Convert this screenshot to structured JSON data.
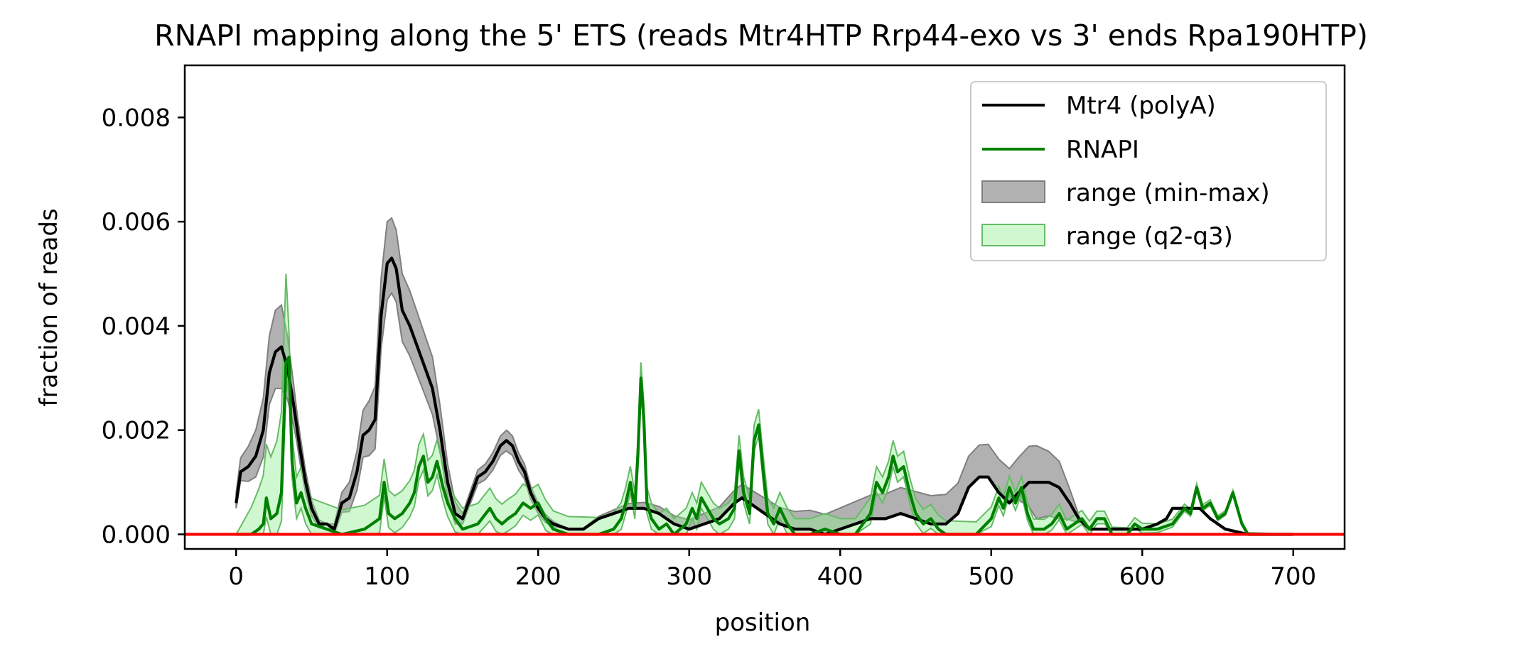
{
  "chart_data": {
    "type": "line",
    "title": "RNAPI mapping along the 5' ETS (reads Mtr4HTP Rrp44-exo vs 3' ends Rpa190HTP)",
    "xlabel": "position",
    "ylabel": "fraction of reads",
    "xlim": [
      -34,
      734
    ],
    "ylim": [
      -0.00028,
      0.009
    ],
    "xticks": [
      0,
      100,
      200,
      300,
      400,
      500,
      600,
      700
    ],
    "xtick_labels": [
      "0",
      "100",
      "200",
      "300",
      "400",
      "500",
      "600",
      "700"
    ],
    "yticks": [
      0,
      0.002,
      0.004,
      0.006,
      0.008
    ],
    "ytick_labels": [
      "0.000",
      "0.002",
      "0.004",
      "0.006",
      "0.008"
    ],
    "grid": false,
    "legend_position": "top-right",
    "baseline": {
      "y": 0,
      "color": "#ff0000"
    },
    "series": [
      {
        "name": "Mtr4 (polyA)",
        "color": "#000000",
        "points": [
          [
            0,
            0.0006
          ],
          [
            3,
            0.0012
          ],
          [
            8,
            0.0013
          ],
          [
            13,
            0.0015
          ],
          [
            18,
            0.002
          ],
          [
            22,
            0.0031
          ],
          [
            26,
            0.0035
          ],
          [
            30,
            0.0036
          ],
          [
            34,
            0.0032
          ],
          [
            38,
            0.0025
          ],
          [
            42,
            0.0017
          ],
          [
            46,
            0.001
          ],
          [
            50,
            0.0005
          ],
          [
            55,
            0.0002
          ],
          [
            60,
            0.0002
          ],
          [
            65,
            0.0001
          ],
          [
            70,
            0.0006
          ],
          [
            75,
            0.0007
          ],
          [
            80,
            0.0012
          ],
          [
            84,
            0.0019
          ],
          [
            88,
            0.002
          ],
          [
            92,
            0.0022
          ],
          [
            96,
            0.0042
          ],
          [
            100,
            0.0052
          ],
          [
            103,
            0.0053
          ],
          [
            106,
            0.0051
          ],
          [
            110,
            0.0043
          ],
          [
            115,
            0.004
          ],
          [
            120,
            0.0036
          ],
          [
            125,
            0.0032
          ],
          [
            130,
            0.0028
          ],
          [
            135,
            0.002
          ],
          [
            140,
            0.001
          ],
          [
            145,
            0.0004
          ],
          [
            150,
            0.0003
          ],
          [
            155,
            0.0007
          ],
          [
            160,
            0.0011
          ],
          [
            165,
            0.0012
          ],
          [
            170,
            0.0014
          ],
          [
            175,
            0.0017
          ],
          [
            179,
            0.0018
          ],
          [
            183,
            0.0017
          ],
          [
            187,
            0.0014
          ],
          [
            191,
            0.0012
          ],
          [
            195,
            0.0008
          ],
          [
            200,
            0.0005
          ],
          [
            205,
            0.0003
          ],
          [
            210,
            0.0002
          ],
          [
            220,
            0.0001
          ],
          [
            230,
            0.0001
          ],
          [
            240,
            0.0003
          ],
          [
            250,
            0.0004
          ],
          [
            260,
            0.0005
          ],
          [
            270,
            0.0005
          ],
          [
            280,
            0.0004
          ],
          [
            290,
            0.0002
          ],
          [
            300,
            0.0001
          ],
          [
            310,
            0.0002
          ],
          [
            320,
            0.0003
          ],
          [
            330,
            0.0006
          ],
          [
            335,
            0.0007
          ],
          [
            340,
            0.0006
          ],
          [
            350,
            0.0004
          ],
          [
            360,
            0.0002
          ],
          [
            370,
            0.0001
          ],
          [
            380,
            0.0001
          ],
          [
            390,
            0.0
          ],
          [
            400,
            0.0001
          ],
          [
            410,
            0.0002
          ],
          [
            420,
            0.0003
          ],
          [
            430,
            0.0003
          ],
          [
            440,
            0.0004
          ],
          [
            450,
            0.0003
          ],
          [
            460,
            0.0002
          ],
          [
            470,
            0.0002
          ],
          [
            478,
            0.0004
          ],
          [
            485,
            0.0009
          ],
          [
            492,
            0.0011
          ],
          [
            498,
            0.0011
          ],
          [
            505,
            0.0008
          ],
          [
            512,
            0.0006
          ],
          [
            518,
            0.0008
          ],
          [
            525,
            0.001
          ],
          [
            532,
            0.001
          ],
          [
            538,
            0.001
          ],
          [
            545,
            0.0009
          ],
          [
            552,
            0.0006
          ],
          [
            558,
            0.0003
          ],
          [
            565,
            0.0001
          ],
          [
            570,
            0.0001
          ],
          [
            580,
            0.0001
          ],
          [
            590,
            0.0001
          ],
          [
            600,
            0.0001
          ],
          [
            610,
            0.0002
          ],
          [
            616,
            0.0003
          ],
          [
            620,
            0.0005
          ],
          [
            630,
            0.0005
          ],
          [
            638,
            0.0005
          ],
          [
            645,
            0.0003
          ],
          [
            655,
            0.0001
          ],
          [
            670,
            0.0
          ],
          [
            700,
            0.0
          ]
        ]
      },
      {
        "name": "RNAPI",
        "color": "#008000",
        "points": [
          [
            0,
            0.0
          ],
          [
            10,
            0.0
          ],
          [
            15,
            0.0001
          ],
          [
            18,
            0.0002
          ],
          [
            20,
            0.0007
          ],
          [
            23,
            0.0003
          ],
          [
            27,
            0.0004
          ],
          [
            30,
            0.0008
          ],
          [
            33,
            0.0033
          ],
          [
            35,
            0.0034
          ],
          [
            37,
            0.0014
          ],
          [
            40,
            0.0006
          ],
          [
            43,
            0.0008
          ],
          [
            46,
            0.0005
          ],
          [
            50,
            0.0002
          ],
          [
            60,
            0.0001
          ],
          [
            70,
            0.0
          ],
          [
            85,
            0.0001
          ],
          [
            90,
            0.0002
          ],
          [
            95,
            0.0003
          ],
          [
            98,
            0.001
          ],
          [
            101,
            0.0004
          ],
          [
            105,
            0.0003
          ],
          [
            110,
            0.0004
          ],
          [
            115,
            0.0006
          ],
          [
            118,
            0.0008
          ],
          [
            121,
            0.0013
          ],
          [
            124,
            0.0015
          ],
          [
            127,
            0.001
          ],
          [
            130,
            0.0011
          ],
          [
            133,
            0.0014
          ],
          [
            137,
            0.0009
          ],
          [
            140,
            0.0006
          ],
          [
            145,
            0.0003
          ],
          [
            150,
            0.0001
          ],
          [
            160,
            0.0002
          ],
          [
            168,
            0.0005
          ],
          [
            172,
            0.0003
          ],
          [
            176,
            0.0002
          ],
          [
            180,
            0.0003
          ],
          [
            185,
            0.0004
          ],
          [
            190,
            0.0006
          ],
          [
            195,
            0.0005
          ],
          [
            200,
            0.0006
          ],
          [
            205,
            0.0003
          ],
          [
            210,
            0.0001
          ],
          [
            220,
            0.0
          ],
          [
            230,
            0.0
          ],
          [
            240,
            0.0
          ],
          [
            250,
            0.0001
          ],
          [
            255,
            0.0003
          ],
          [
            258,
            0.0006
          ],
          [
            261,
            0.001
          ],
          [
            264,
            0.0005
          ],
          [
            266,
            0.0015
          ],
          [
            268,
            0.003
          ],
          [
            270,
            0.0022
          ],
          [
            272,
            0.0006
          ],
          [
            275,
            0.0003
          ],
          [
            280,
            0.0001
          ],
          [
            285,
            0.0002
          ],
          [
            290,
            0.0
          ],
          [
            298,
            0.0002
          ],
          [
            302,
            0.0005
          ],
          [
            305,
            0.0003
          ],
          [
            308,
            0.0007
          ],
          [
            312,
            0.0005
          ],
          [
            316,
            0.0003
          ],
          [
            320,
            0.0002
          ],
          [
            326,
            0.0003
          ],
          [
            330,
            0.0005
          ],
          [
            333,
            0.0016
          ],
          [
            336,
            0.0008
          ],
          [
            340,
            0.0004
          ],
          [
            343,
            0.0018
          ],
          [
            346,
            0.0021
          ],
          [
            349,
            0.0012
          ],
          [
            352,
            0.0004
          ],
          [
            356,
            0.0002
          ],
          [
            360,
            0.0005
          ],
          [
            365,
            0.0002
          ],
          [
            370,
            0.0
          ],
          [
            380,
            0.0
          ],
          [
            390,
            0.0001
          ],
          [
            400,
            0.0
          ],
          [
            410,
            0.0
          ],
          [
            420,
            0.0004
          ],
          [
            424,
            0.001
          ],
          [
            428,
            0.0008
          ],
          [
            432,
            0.0011
          ],
          [
            435,
            0.0015
          ],
          [
            438,
            0.0012
          ],
          [
            442,
            0.0013
          ],
          [
            446,
            0.0008
          ],
          [
            450,
            0.0004
          ],
          [
            455,
            0.0002
          ],
          [
            460,
            0.0003
          ],
          [
            465,
            0.0001
          ],
          [
            470,
            0.0
          ],
          [
            480,
            0.0
          ],
          [
            490,
            0.0
          ],
          [
            500,
            0.0003
          ],
          [
            505,
            0.0007
          ],
          [
            508,
            0.0005
          ],
          [
            512,
            0.0009
          ],
          [
            516,
            0.0006
          ],
          [
            520,
            0.0009
          ],
          [
            524,
            0.0004
          ],
          [
            528,
            0.0001
          ],
          [
            535,
            0.0001
          ],
          [
            540,
            0.0002
          ],
          [
            545,
            0.0004
          ],
          [
            550,
            0.0001
          ],
          [
            555,
            0.0002
          ],
          [
            560,
            0.0003
          ],
          [
            565,
            0.0001
          ],
          [
            570,
            0.0003
          ],
          [
            575,
            0.0003
          ],
          [
            580,
            0.0
          ],
          [
            590,
            0.0
          ],
          [
            595,
            0.0002
          ],
          [
            600,
            0.0001
          ],
          [
            610,
            0.0001
          ],
          [
            620,
            0.0002
          ],
          [
            628,
            0.0005
          ],
          [
            632,
            0.0004
          ],
          [
            636,
            0.0009
          ],
          [
            640,
            0.0005
          ],
          [
            645,
            0.0006
          ],
          [
            650,
            0.0003
          ],
          [
            655,
            0.0004
          ],
          [
            660,
            0.0008
          ],
          [
            663,
            0.0005
          ],
          [
            666,
            0.0002
          ],
          [
            670,
            0.0
          ],
          [
            700,
            0.0
          ]
        ]
      },
      {
        "name": "range (min-max)",
        "kind": "band",
        "fill": "#a9a9a9",
        "stroke": "#7f7f7f",
        "center": "Mtr4 (polyA)",
        "upper_extra": [
          [
            0,
            0.0002
          ],
          [
            26,
            0.0008
          ],
          [
            30,
            0.0008
          ],
          [
            40,
            0.0003
          ],
          [
            60,
            0.0
          ],
          [
            100,
            0.0008
          ],
          [
            110,
            0.0007
          ],
          [
            130,
            0.0006
          ],
          [
            150,
            0.0001
          ],
          [
            180,
            0.0002
          ],
          [
            220,
            0.0
          ],
          [
            530,
            0.0007
          ],
          [
            545,
            0.0005
          ],
          [
            560,
            0.0
          ],
          [
            700,
            0.0
          ]
        ],
        "lower_extra": [
          [
            0,
            0.0001
          ],
          [
            26,
            0.0007
          ],
          [
            30,
            0.0008
          ],
          [
            40,
            0.0003
          ],
          [
            60,
            0.0
          ],
          [
            100,
            0.0007
          ],
          [
            110,
            0.0006
          ],
          [
            130,
            0.0005
          ],
          [
            150,
            0.0001
          ],
          [
            180,
            0.0002
          ],
          [
            220,
            0.0
          ],
          [
            515,
            0.0
          ],
          [
            530,
            0.0007
          ],
          [
            545,
            0.0006
          ],
          [
            560,
            0.0
          ],
          [
            700,
            0.0
          ]
        ]
      },
      {
        "name": "range (q2-q3)",
        "kind": "band",
        "fill": "#90ee90",
        "stroke": "#66bb66",
        "center": "RNAPI",
        "upper_extra": [
          [
            0,
            0.0
          ],
          [
            33,
            0.0017
          ],
          [
            35,
            0.0005
          ],
          [
            268,
            0.0003
          ],
          [
            346,
            0.0003
          ],
          [
            436,
            0.0003
          ],
          [
            700,
            0.0
          ]
        ],
        "lower_extra": [
          [
            0,
            0.0
          ],
          [
            33,
            0.0006
          ],
          [
            35,
            0.0003
          ],
          [
            268,
            0.0002
          ],
          [
            346,
            0.0002
          ],
          [
            436,
            0.0002
          ],
          [
            700,
            0.0
          ]
        ]
      }
    ]
  }
}
